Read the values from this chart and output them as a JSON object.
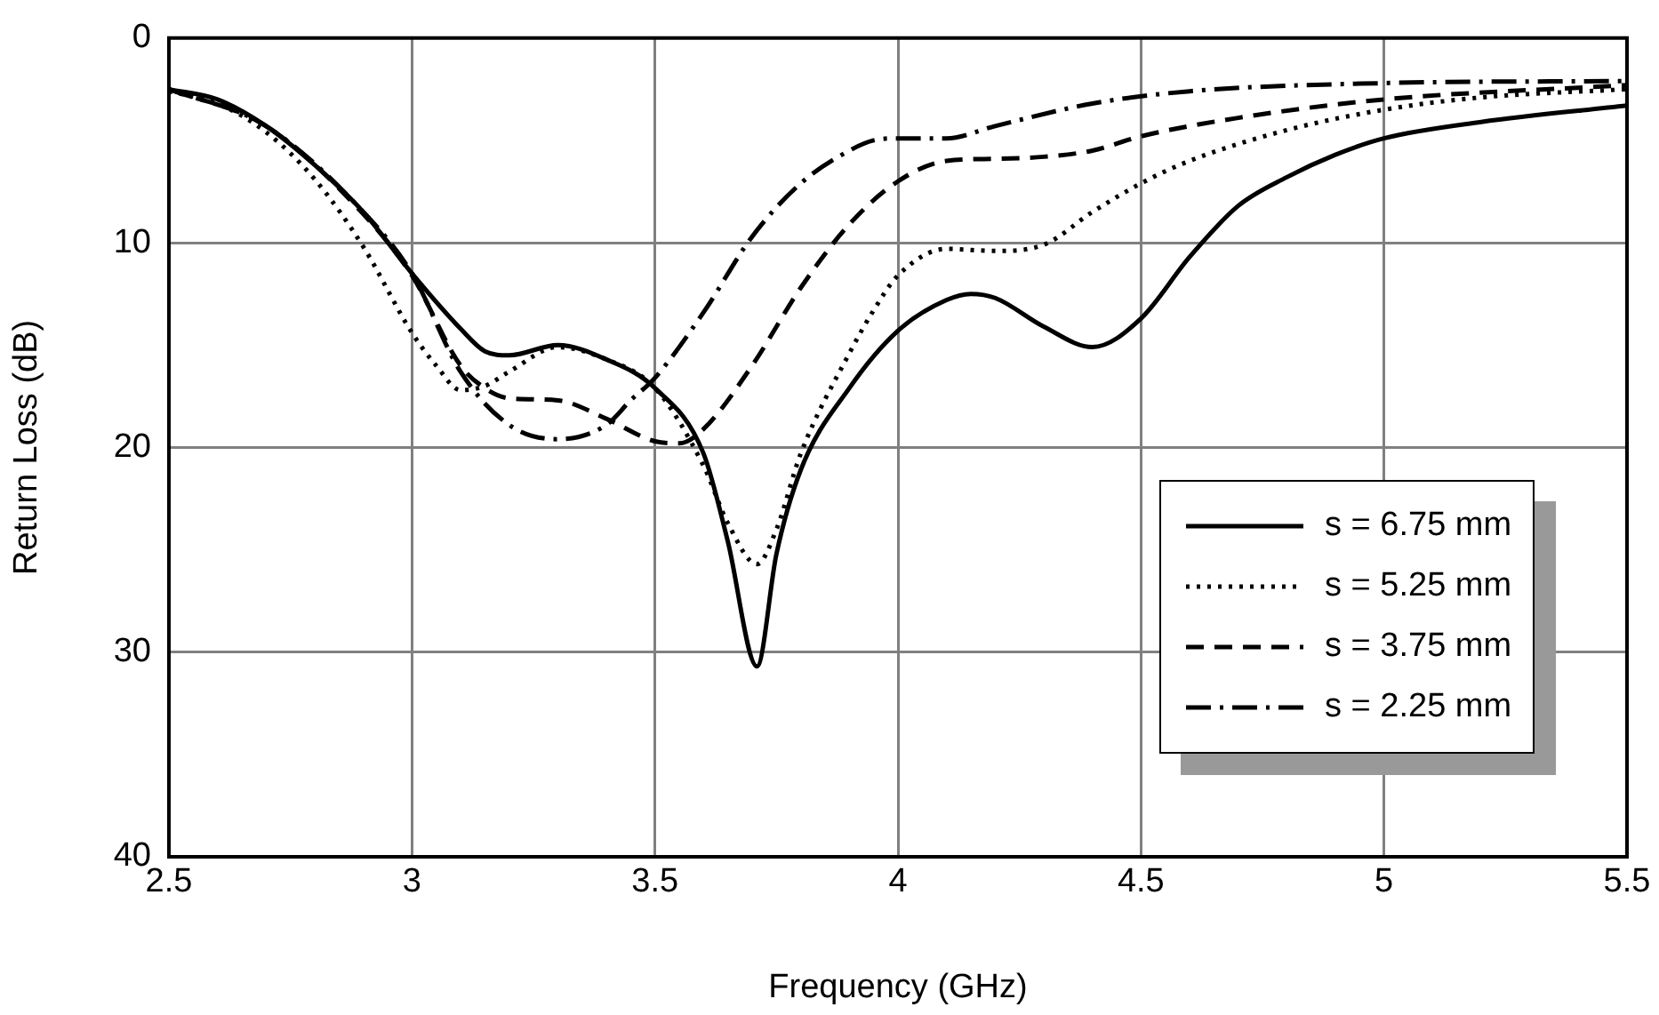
{
  "chart_data": {
    "type": "line",
    "xlabel": "Frequency (GHz)",
    "ylabel": "Return Loss (dB)",
    "xlim": [
      2.5,
      5.5
    ],
    "xticks": [
      2.5,
      3,
      3.5,
      4,
      4.5,
      5,
      5.5
    ],
    "ylim": [
      40,
      0
    ],
    "yticks": [
      0,
      10,
      20,
      30,
      40
    ],
    "grid": true,
    "legend": "bottom right",
    "marker": "none",
    "series": [
      {
        "name": "s = 6.75 mm",
        "color": "#000000",
        "line_style": "solid",
        "x": [
          2.5,
          2.6,
          2.7,
          2.8,
          2.9,
          3.0,
          3.1,
          3.15,
          3.2,
          3.3,
          3.4,
          3.5,
          3.6,
          3.65,
          3.71,
          3.75,
          3.8,
          3.9,
          4.0,
          4.1,
          4.15,
          4.2,
          4.3,
          4.4,
          4.5,
          4.6,
          4.7,
          4.8,
          4.9,
          5.0,
          5.2,
          5.5
        ],
        "values": [
          2.5,
          3.0,
          4.3,
          6.2,
          8.5,
          11.5,
          14.2,
          15.3,
          15.5,
          15.0,
          15.7,
          17.1,
          20.3,
          24.6,
          30.7,
          25.2,
          21.1,
          17.1,
          14.3,
          12.8,
          12.5,
          12.7,
          14.1,
          15.1,
          13.7,
          10.7,
          8.2,
          6.8,
          5.7,
          4.9,
          4.1,
          3.3
        ]
      },
      {
        "name": "s = 5.25 mm",
        "color": "#000000",
        "line_style": "dotted",
        "x": [
          2.5,
          2.6,
          2.7,
          2.8,
          2.9,
          3.0,
          3.05,
          3.1,
          3.15,
          3.2,
          3.3,
          3.4,
          3.5,
          3.6,
          3.65,
          3.71,
          3.75,
          3.8,
          3.9,
          3.95,
          4.0,
          4.1,
          4.2,
          4.3,
          4.4,
          4.5,
          4.6,
          4.8,
          5.0,
          5.2,
          5.5
        ],
        "values": [
          2.6,
          3.2,
          4.6,
          6.9,
          10.2,
          14.4,
          16.0,
          17.2,
          17.0,
          16.3,
          15.1,
          15.7,
          17.1,
          20.9,
          23.7,
          25.7,
          24.0,
          20.3,
          15.4,
          13.3,
          11.6,
          10.3,
          10.4,
          10.1,
          8.5,
          7.1,
          6.0,
          4.5,
          3.5,
          2.9,
          2.5
        ]
      },
      {
        "name": "s = 3.75 mm",
        "color": "#000000",
        "line_style": "dashed",
        "x": [
          2.5,
          2.7,
          2.9,
          3.0,
          3.1,
          3.15,
          3.2,
          3.3,
          3.4,
          3.5,
          3.55,
          3.6,
          3.7,
          3.8,
          3.9,
          4.0,
          4.1,
          4.2,
          4.3,
          4.4,
          4.5,
          4.7,
          5.0,
          5.5
        ],
        "values": [
          2.5,
          4.3,
          8.6,
          11.6,
          16.0,
          17.1,
          17.6,
          17.7,
          18.6,
          19.7,
          19.8,
          19.1,
          16.0,
          12.2,
          9.1,
          7.0,
          6.0,
          5.9,
          5.8,
          5.5,
          4.8,
          3.9,
          3.0,
          2.3
        ]
      },
      {
        "name": "s = 2.25 mm",
        "color": "#000000",
        "line_style": "dashdot",
        "x": [
          2.5,
          2.7,
          2.9,
          3.0,
          3.1,
          3.2,
          3.3,
          3.4,
          3.45,
          3.5,
          3.6,
          3.7,
          3.8,
          3.9,
          3.95,
          4.0,
          4.1,
          4.2,
          4.4,
          4.6,
          5.0,
          5.5
        ],
        "values": [
          2.5,
          4.3,
          8.5,
          11.5,
          16.3,
          18.9,
          19.6,
          18.9,
          17.7,
          16.6,
          13.4,
          9.7,
          7.1,
          5.5,
          5.0,
          4.9,
          4.9,
          4.3,
          3.2,
          2.6,
          2.2,
          2.1
        ]
      }
    ]
  }
}
